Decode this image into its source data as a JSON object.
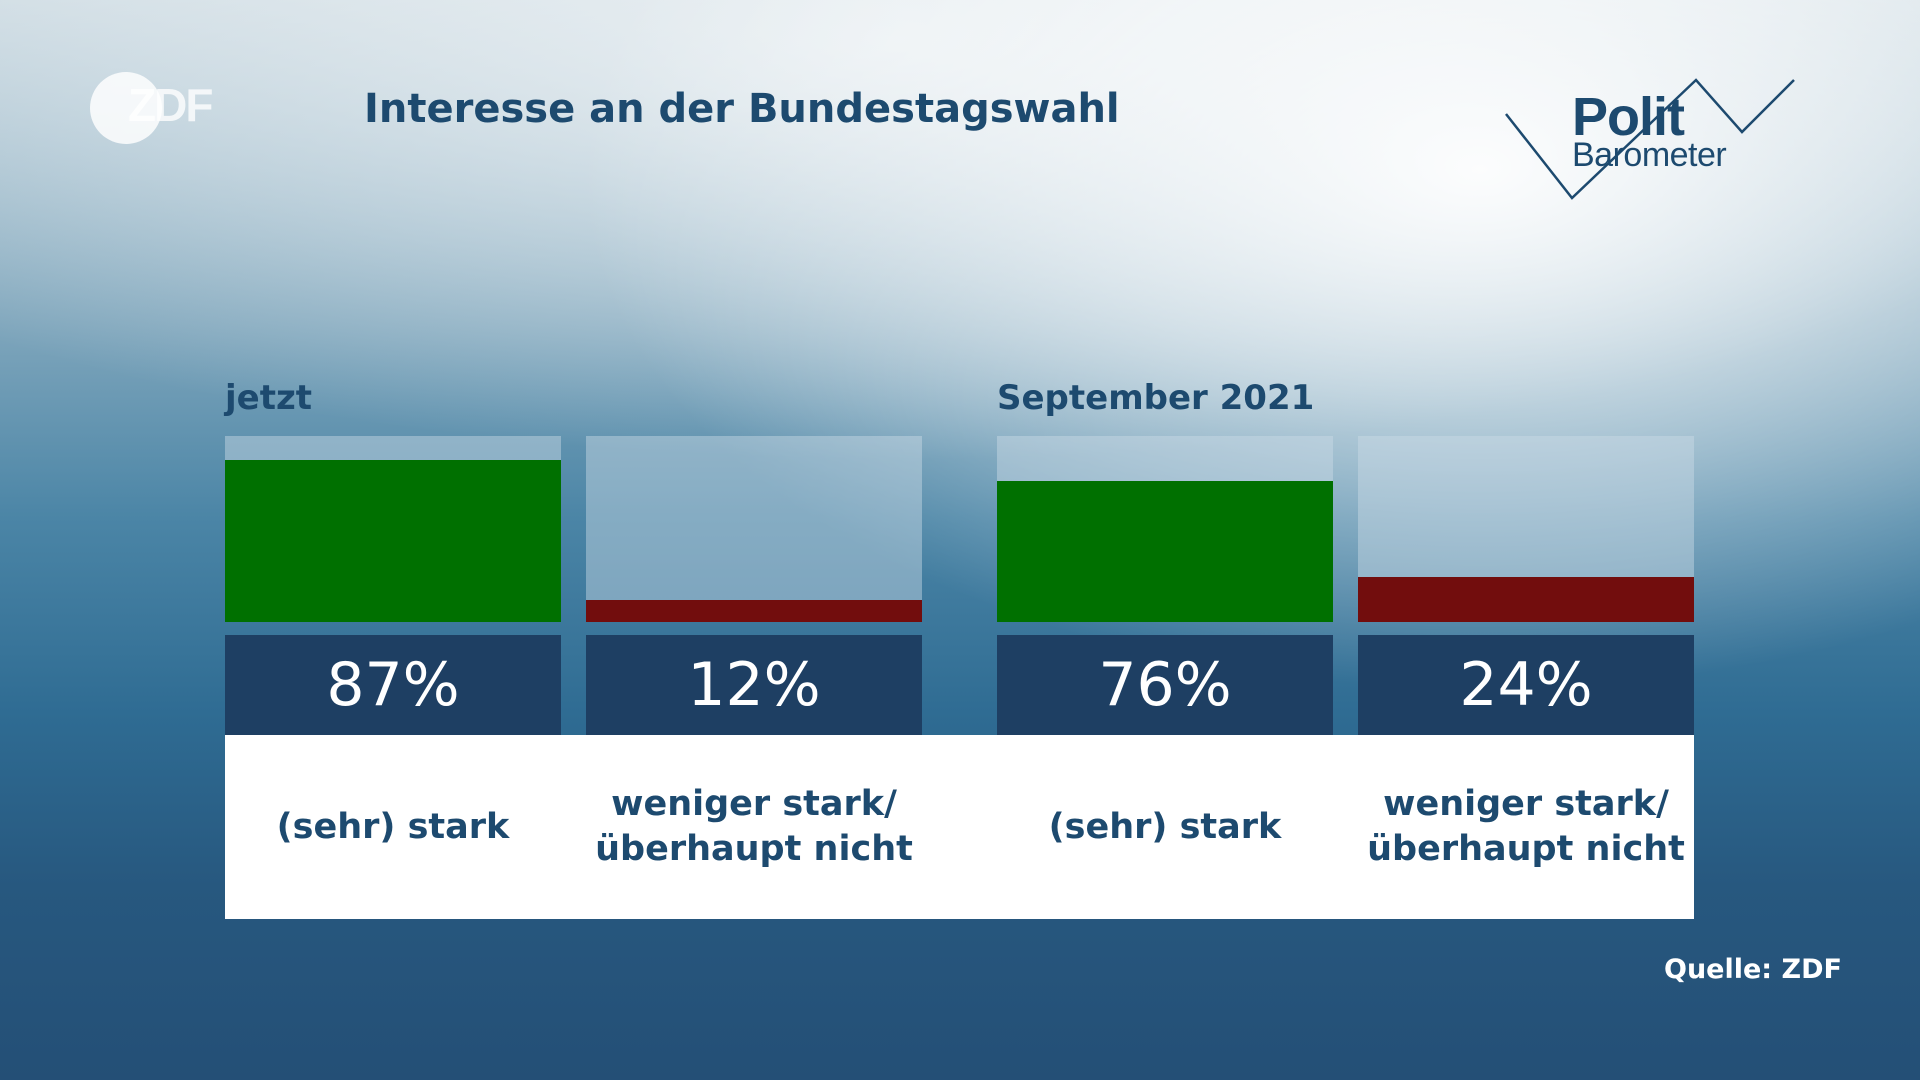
{
  "header": {
    "title": "Interesse an der Bundestagswahl",
    "broadcaster_logo": "ZDF",
    "show_logo_top": "Polit",
    "show_logo_bottom": "Barometer"
  },
  "footer": {
    "source": "Quelle: ZDF"
  },
  "colors": {
    "positive": "#007000",
    "negative": "#720d0d",
    "value_box": "#1e3f63",
    "text": "#1d4a6f"
  },
  "chart_data": {
    "type": "bar",
    "title": "Interesse an der Bundestagswahl",
    "unit": "%",
    "ylim": [
      0,
      100
    ],
    "groups": [
      {
        "label": "jetzt",
        "bars": [
          {
            "category": "(sehr) stark",
            "value": 87,
            "display": "87%",
            "color": "#007000"
          },
          {
            "category": "weniger stark/\nüberhaupt nicht",
            "value": 12,
            "display": "12%",
            "color": "#720d0d"
          }
        ]
      },
      {
        "label": "September 2021",
        "bars": [
          {
            "category": "(sehr) stark",
            "value": 76,
            "display": "76%",
            "color": "#007000"
          },
          {
            "category": "weniger stark/\nüberhaupt nicht",
            "value": 24,
            "display": "24%",
            "color": "#720d0d"
          }
        ]
      }
    ]
  }
}
